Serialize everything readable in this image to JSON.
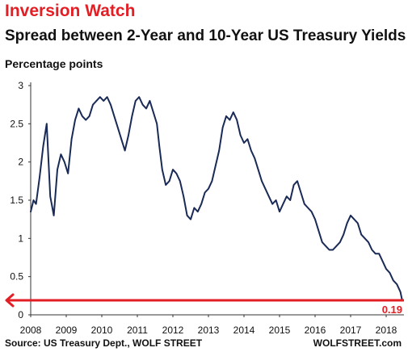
{
  "header": {
    "title": "Inversion Watch",
    "subtitle": "Spread between 2-Year and 10-Year US Treasury Yields",
    "ylabel": "Percentage points"
  },
  "footer": {
    "source": "Source: US Treasury Dept., WOLF STREET",
    "brand": "WOLFSTREET.com"
  },
  "colors": {
    "title": "#e31e24",
    "line": "#1a2a57",
    "annotation": "#e31e24"
  },
  "chart_data": {
    "type": "line",
    "title": "Spread between 2-Year and 10-Year US Treasury Yields",
    "ylabel": "Percentage points",
    "xlim": [
      2008,
      2018.5
    ],
    "ylim": [
      0,
      3
    ],
    "grid": false,
    "xticks": [
      "2008",
      "2009",
      "2010",
      "2011",
      "2012",
      "2013",
      "2014",
      "2015",
      "2016",
      "2017",
      "2018"
    ],
    "yticks": [
      "0",
      "0.5",
      "1",
      "1.5",
      "2",
      "2.5",
      "3"
    ],
    "series": [
      {
        "x": [
          2008.0,
          2008.08,
          2008.15,
          2008.25,
          2008.35,
          2008.45,
          2008.55,
          2008.65,
          2008.75,
          2008.85,
          2008.95,
          2009.05,
          2009.15,
          2009.25,
          2009.35,
          2009.45,
          2009.55,
          2009.65,
          2009.75,
          2009.85,
          2009.95,
          2010.05,
          2010.15,
          2010.25,
          2010.35,
          2010.45,
          2010.55,
          2010.65,
          2010.75,
          2010.85,
          2010.95,
          2011.05,
          2011.15,
          2011.25,
          2011.35,
          2011.45,
          2011.55,
          2011.62,
          2011.7,
          2011.8,
          2011.9,
          2012.0,
          2012.1,
          2012.2,
          2012.3,
          2012.4,
          2012.5,
          2012.6,
          2012.7,
          2012.8,
          2012.9,
          2013.0,
          2013.1,
          2013.2,
          2013.3,
          2013.4,
          2013.5,
          2013.6,
          2013.7,
          2013.8,
          2013.9,
          2014.0,
          2014.1,
          2014.2,
          2014.3,
          2014.4,
          2014.5,
          2014.6,
          2014.7,
          2014.8,
          2014.9,
          2015.0,
          2015.1,
          2015.2,
          2015.3,
          2015.4,
          2015.5,
          2015.6,
          2015.7,
          2015.8,
          2015.9,
          2016.0,
          2016.1,
          2016.2,
          2016.3,
          2016.4,
          2016.5,
          2016.6,
          2016.7,
          2016.8,
          2016.9,
          2017.0,
          2017.1,
          2017.2,
          2017.3,
          2017.4,
          2017.5,
          2017.6,
          2017.7,
          2017.8,
          2017.9,
          2018.0,
          2018.1,
          2018.2,
          2018.3,
          2018.4,
          2018.45
        ],
        "values": [
          1.35,
          1.5,
          1.45,
          1.8,
          2.2,
          2.5,
          1.55,
          1.3,
          1.9,
          2.1,
          2.0,
          1.85,
          2.3,
          2.55,
          2.7,
          2.6,
          2.55,
          2.6,
          2.75,
          2.8,
          2.85,
          2.8,
          2.85,
          2.75,
          2.6,
          2.45,
          2.3,
          2.15,
          2.35,
          2.6,
          2.8,
          2.85,
          2.75,
          2.7,
          2.8,
          2.65,
          2.5,
          2.2,
          1.9,
          1.7,
          1.75,
          1.9,
          1.85,
          1.75,
          1.55,
          1.3,
          1.25,
          1.4,
          1.35,
          1.45,
          1.6,
          1.65,
          1.75,
          1.95,
          2.15,
          2.45,
          2.6,
          2.55,
          2.65,
          2.55,
          2.35,
          2.25,
          2.3,
          2.15,
          2.05,
          1.9,
          1.75,
          1.65,
          1.55,
          1.45,
          1.5,
          1.35,
          1.45,
          1.55,
          1.5,
          1.7,
          1.75,
          1.6,
          1.45,
          1.4,
          1.35,
          1.25,
          1.1,
          0.95,
          0.9,
          0.85,
          0.85,
          0.9,
          0.95,
          1.05,
          1.2,
          1.3,
          1.25,
          1.2,
          1.05,
          1.0,
          0.95,
          0.85,
          0.8,
          0.8,
          0.7,
          0.6,
          0.55,
          0.45,
          0.4,
          0.3,
          0.19
        ]
      }
    ],
    "annotation": {
      "label": "0.19",
      "value": 0.19
    }
  }
}
